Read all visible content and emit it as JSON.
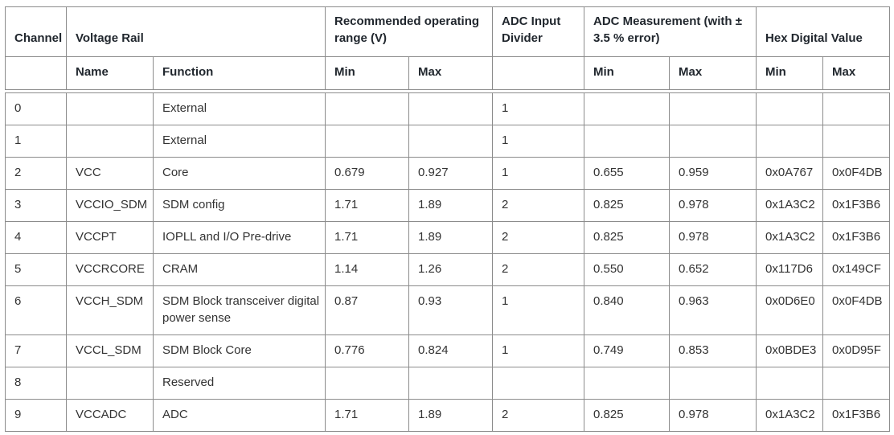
{
  "table": {
    "column_groups": [
      {
        "label": "Channel",
        "colspan": 1
      },
      {
        "label": "Voltage Rail",
        "colspan": 2
      },
      {
        "label": "Recommended operating range (V)",
        "colspan": 2
      },
      {
        "label": "ADC Input Divider",
        "colspan": 1
      },
      {
        "label": "ADC Measurement (with ± 3.5 % error)",
        "colspan": 2
      },
      {
        "label": "Hex Digital Value",
        "colspan": 2
      }
    ],
    "sub_headers": [
      "",
      "Name",
      "Function",
      "Min",
      "Max",
      "",
      "Min",
      "Max",
      "Min",
      "Max"
    ],
    "column_keys": [
      "channel",
      "name",
      "function",
      "rec-min",
      "rec-max",
      "divider",
      "adc-min",
      "adc-max",
      "hex-min",
      "hex-max"
    ],
    "rows": [
      [
        "0",
        "",
        "External",
        "",
        "",
        "1",
        "",
        "",
        "",
        ""
      ],
      [
        "1",
        "",
        "External",
        "",
        "",
        "1",
        "",
        "",
        "",
        ""
      ],
      [
        "2",
        "VCC",
        "Core",
        "0.679",
        "0.927",
        "1",
        "0.655",
        "0.959",
        "0x0A767",
        "0x0F4DB"
      ],
      [
        "3",
        "VCCIO_SDM",
        "SDM config",
        "1.71",
        "1.89",
        "2",
        "0.825",
        "0.978",
        "0x1A3C2",
        "0x1F3B6"
      ],
      [
        "4",
        "VCCPT",
        "IOPLL and I/O Pre-drive",
        "1.71",
        "1.89",
        "2",
        "0.825",
        "0.978",
        "0x1A3C2",
        "0x1F3B6"
      ],
      [
        "5",
        "VCCRCORE",
        "CRAM",
        "1.14",
        "1.26",
        "2",
        "0.550",
        "0.652",
        "0x117D6",
        "0x149CF"
      ],
      [
        "6",
        "VCCH_SDM",
        "SDM Block transceiver digital power sense",
        "0.87",
        "0.93",
        "1",
        "0.840",
        "0.963",
        "0x0D6E0",
        "0x0F4DB"
      ],
      [
        "7",
        "VCCL_SDM",
        "SDM Block Core",
        "0.776",
        "0.824",
        "1",
        "0.749",
        "0.853",
        "0x0BDE3",
        "0x0D95F"
      ],
      [
        "8",
        "",
        "Reserved",
        "",
        "",
        "",
        "",
        "",
        "",
        ""
      ],
      [
        "9",
        "VCCADC",
        "ADC",
        "1.71",
        "1.89",
        "2",
        "0.825",
        "0.978",
        "0x1A3C2",
        "0x1F3B6"
      ]
    ]
  },
  "colors": {
    "border": "#8c8c8c",
    "header_text": "#21272e",
    "body_text": "#333333",
    "background": "#ffffff"
  }
}
